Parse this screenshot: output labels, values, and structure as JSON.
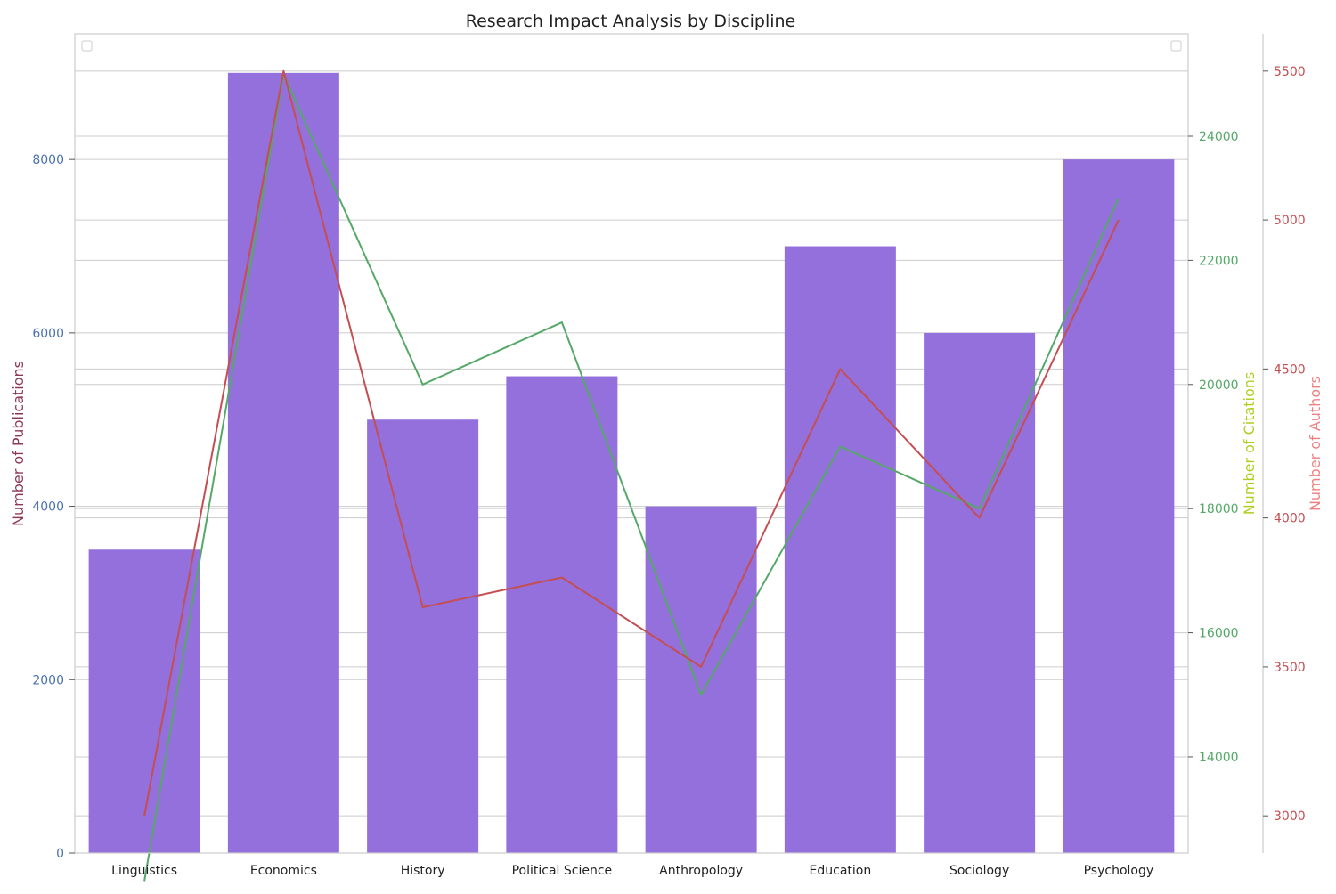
{
  "chart_data": {
    "type": "bar",
    "title": "Research Impact Analysis by Discipline",
    "categories": [
      "Linguistics",
      "Economics",
      "History",
      "Political Science",
      "Anthropology",
      "Education",
      "Sociology",
      "Psychology"
    ],
    "series": [
      {
        "name": "Number of Publications",
        "type": "bar",
        "axis": "left",
        "color": "#9370DB",
        "values": [
          3500,
          9000,
          5000,
          5500,
          4000,
          7000,
          6000,
          8000
        ]
      },
      {
        "name": "Number of Citations",
        "type": "line",
        "axis": "right1",
        "color": "#55A868",
        "values": [
          12000,
          25000,
          20000,
          21000,
          15000,
          19000,
          18000,
          23000
        ]
      },
      {
        "name": "Number of Authors",
        "type": "line",
        "axis": "right2",
        "color": "#C44E52",
        "values": [
          3000,
          5500,
          3700,
          3800,
          3500,
          4500,
          4000,
          5000
        ]
      }
    ],
    "axes": {
      "left": {
        "label": "Number of Publications",
        "label_color": "#8B3A52",
        "tick_color": "#4C72B0",
        "ylim": [
          0,
          9450
        ],
        "ticks": [
          0,
          2000,
          4000,
          6000,
          8000
        ]
      },
      "right1": {
        "label": "Number of Citations",
        "label_color": "#ADD020",
        "tick_color": "#55A868",
        "ylim": [
          12450,
          25650
        ],
        "ticks": [
          14000,
          16000,
          18000,
          20000,
          22000,
          24000
        ]
      },
      "right2": {
        "label": "Number of Authors",
        "label_color": "#F08080",
        "tick_color": "#C44E52",
        "ylim": [
          2875,
          5625
        ],
        "ticks": [
          3000,
          3500,
          4000,
          4500,
          5000,
          5500
        ]
      }
    },
    "grid": true,
    "legend": [
      "top-left",
      "top-right"
    ]
  }
}
